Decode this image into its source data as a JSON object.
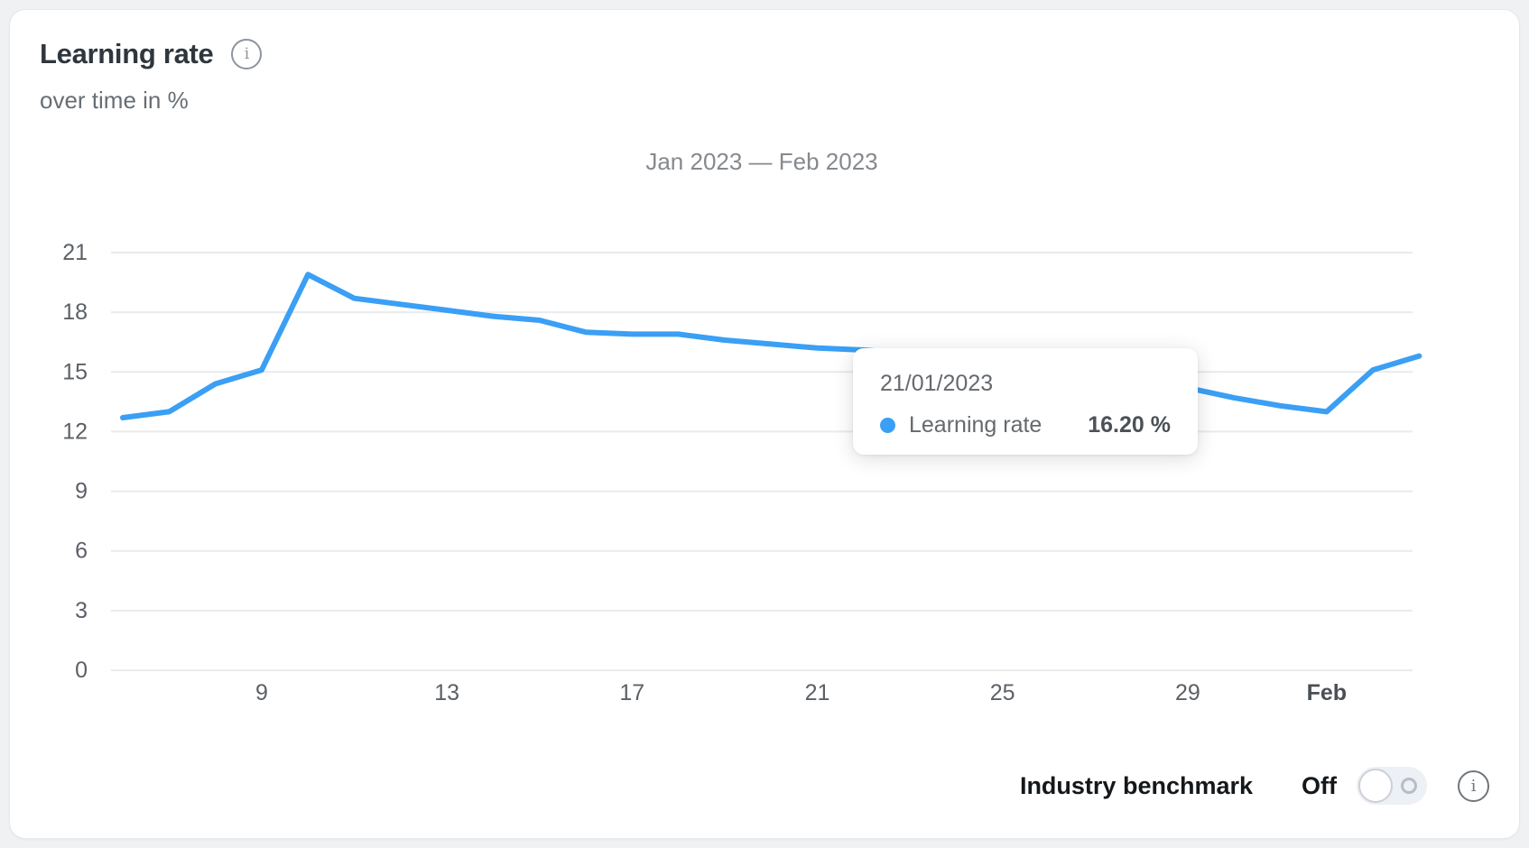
{
  "header": {
    "title": "Learning rate",
    "subtitle": "over time in %",
    "info_icon": "info-circle-icon"
  },
  "chart_data": {
    "type": "line",
    "title": "Jan 2023 — Feb 2023",
    "unit": "%",
    "ylim": [
      0,
      21
    ],
    "y_ticks": [
      0,
      3,
      6,
      9,
      12,
      15,
      18,
      21
    ],
    "x_ticks": [
      {
        "label": "9",
        "index": 3,
        "bold": false
      },
      {
        "label": "13",
        "index": 7,
        "bold": false
      },
      {
        "label": "17",
        "index": 11,
        "bold": false
      },
      {
        "label": "21",
        "index": 15,
        "bold": false
      },
      {
        "label": "25",
        "index": 19,
        "bold": false
      },
      {
        "label": "29",
        "index": 23,
        "bold": false
      },
      {
        "label": "Feb",
        "index": 26,
        "bold": true
      }
    ],
    "grid": true,
    "legend": "none",
    "line_color": "#3a9ff5",
    "grid_color": "#e9eaec",
    "axis_label_color": "#5c6167",
    "series": [
      {
        "name": "Learning rate",
        "dates": [
          "06/01/2023",
          "07/01/2023",
          "08/01/2023",
          "09/01/2023",
          "10/01/2023",
          "11/01/2023",
          "12/01/2023",
          "13/01/2023",
          "14/01/2023",
          "15/01/2023",
          "16/01/2023",
          "17/01/2023",
          "18/01/2023",
          "19/01/2023",
          "20/01/2023",
          "21/01/2023",
          "22/01/2023",
          "23/01/2023",
          "24/01/2023",
          "25/01/2023",
          "26/01/2023",
          "27/01/2023",
          "28/01/2023",
          "29/01/2023",
          "30/01/2023",
          "31/01/2023",
          "01/02/2023",
          "02/02/2023",
          "03/02/2023"
        ],
        "values": [
          12.7,
          13.0,
          14.4,
          15.1,
          19.9,
          18.7,
          18.4,
          18.1,
          17.8,
          17.6,
          17.0,
          16.9,
          16.9,
          16.6,
          16.4,
          16.2,
          16.1,
          15.9,
          15.6,
          15.4,
          15.1,
          14.9,
          14.6,
          14.2,
          13.7,
          13.3,
          13.0,
          15.1,
          15.8
        ]
      }
    ]
  },
  "tooltip": {
    "date": "21/01/2023",
    "series_label": "Learning rate",
    "value": "16.20 %",
    "dot_color": "#3a9ff5"
  },
  "benchmark": {
    "label": "Industry benchmark",
    "state_label": "Off",
    "toggle_state": "off",
    "info_icon": "info-circle-icon"
  },
  "icons": {
    "title_info_glyph": "i",
    "benchmark_info_glyph": "i"
  }
}
